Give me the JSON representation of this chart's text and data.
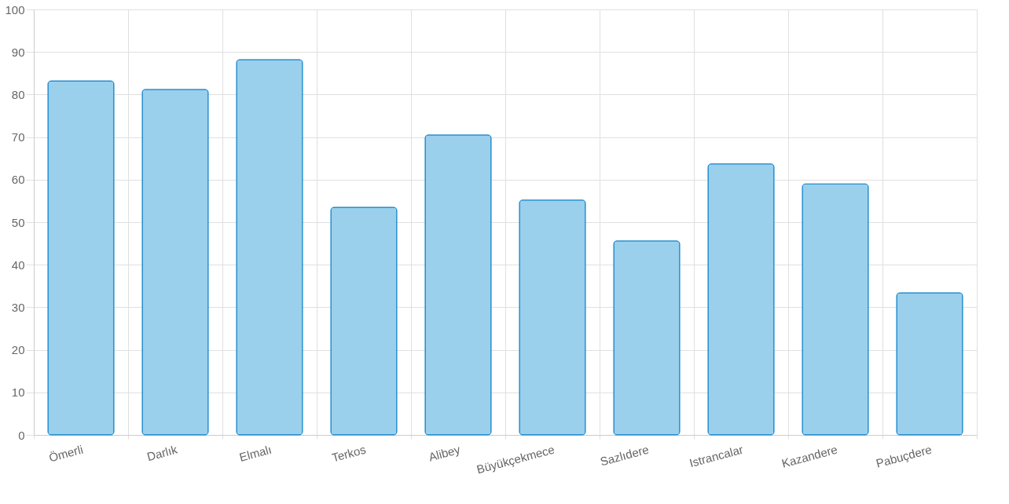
{
  "chart_data": {
    "type": "bar",
    "categories": [
      "Ömerli",
      "Darlık",
      "Elmalı",
      "Terkos",
      "Alibey",
      "Büyükçekmece",
      "Sazlıdere",
      "Istrancalar",
      "Kazandere",
      "Pabuçdere"
    ],
    "values": [
      83.2,
      81.2,
      88.2,
      53.5,
      70.5,
      55.2,
      45.6,
      63.7,
      59.0,
      33.4
    ],
    "color": "#9ad0ec",
    "ylim": [
      0,
      100
    ],
    "yticks": [
      0,
      10,
      20,
      30,
      40,
      50,
      60,
      70,
      80,
      90,
      100
    ],
    "grid": true
  }
}
